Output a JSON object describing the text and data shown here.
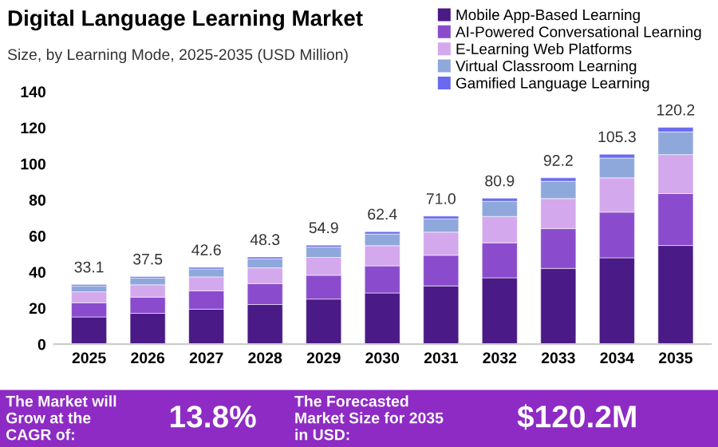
{
  "chart_data": {
    "type": "bar",
    "stacked": true,
    "title": "Digital Language Learning Market",
    "subtitle": "Size, by Learning Mode, 2025-2035 (USD Million)",
    "categories": [
      "2025",
      "2026",
      "2027",
      "2028",
      "2029",
      "2030",
      "2031",
      "2032",
      "2033",
      "2034",
      "2035"
    ],
    "series": [
      {
        "name": "Mobile App-Based Learning",
        "color": "#4a1a86",
        "values": [
          15.1,
          17.1,
          19.4,
          22.0,
          25.0,
          28.4,
          32.3,
          36.8,
          42.0,
          47.9,
          54.7
        ]
      },
      {
        "name": "AI-Powered Conversational Learning",
        "color": "#8a4ccc",
        "values": [
          7.9,
          9.0,
          10.2,
          11.6,
          13.2,
          15.0,
          17.0,
          19.4,
          22.1,
          25.3,
          28.8
        ]
      },
      {
        "name": "E-Learning Web Platforms",
        "color": "#d4a8ec",
        "values": [
          6.0,
          6.8,
          7.7,
          8.7,
          9.9,
          11.2,
          12.8,
          14.6,
          16.6,
          19.0,
          21.6
        ]
      },
      {
        "name": "Virtual Classroom Learning",
        "color": "#8fa8dc",
        "values": [
          3.3,
          3.8,
          4.4,
          5.0,
          5.7,
          6.5,
          7.4,
          8.4,
          9.6,
          11.0,
          12.6
        ]
      },
      {
        "name": "Gamified Language Learning",
        "color": "#6a6af0",
        "values": [
          0.8,
          0.8,
          0.9,
          1.0,
          1.1,
          1.3,
          1.5,
          1.7,
          1.9,
          2.1,
          2.5
        ]
      }
    ],
    "totals": [
      "33.1",
      "37.5",
      "42.6",
      "48.3",
      "54.9",
      "62.4",
      "71.0",
      "80.9",
      "92.2",
      "105.3",
      "120.2"
    ],
    "ylim": [
      0,
      140
    ],
    "yticks": [
      0,
      20,
      40,
      60,
      80,
      100,
      120,
      140
    ],
    "grid": false,
    "legend": "top right",
    "annotations": [
      "The Market will Grow at the CAGR of:",
      "13.8%",
      "The Forecasted Market Size for 2035 in USD:",
      "$120.2M"
    ]
  }
}
